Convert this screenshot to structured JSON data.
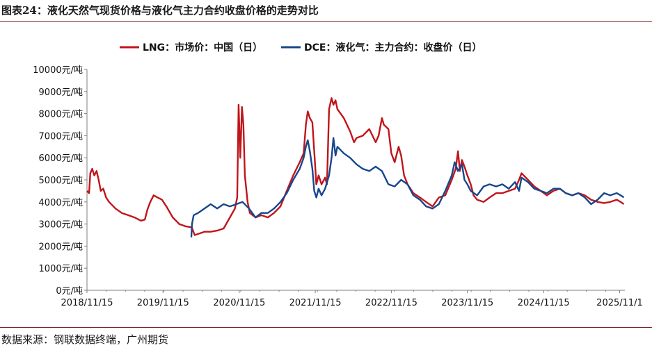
{
  "header": {
    "title": "图表24：液化天然气现货价格与液化气主力合约收盘价格的走势对比"
  },
  "footer": {
    "source": "数据来源：钢联数据终端，广州期货"
  },
  "chart_data": {
    "type": "line",
    "title": "",
    "xlabel": "",
    "ylabel": "",
    "ylim": [
      0,
      10000
    ],
    "y_ticks": [
      {
        "value": 0,
        "label": "0元/吨"
      },
      {
        "value": 1000,
        "label": "1000元/吨"
      },
      {
        "value": 2000,
        "label": "2000元/吨"
      },
      {
        "value": 3000,
        "label": "3000元/吨"
      },
      {
        "value": 4000,
        "label": "4000元/吨"
      },
      {
        "value": 5000,
        "label": "5000元/吨"
      },
      {
        "value": 6000,
        "label": "6000元/吨"
      },
      {
        "value": 7000,
        "label": "7000元/吨"
      },
      {
        "value": 8000,
        "label": "8000元/吨"
      },
      {
        "value": 9000,
        "label": "9000元/吨"
      },
      {
        "value": 10000,
        "label": "10000元/吨"
      }
    ],
    "xlim": [
      "2018-11-15",
      "2025-12-10"
    ],
    "x_ticks": [
      {
        "date": "2018-11-15",
        "label": "2018/11/15"
      },
      {
        "date": "2019-11-15",
        "label": "2019/11/15"
      },
      {
        "date": "2020-11-15",
        "label": "2020/11/15"
      },
      {
        "date": "2021-11-15",
        "label": "2021/11/15"
      },
      {
        "date": "2022-11-15",
        "label": "2022/11/15"
      },
      {
        "date": "2023-11-15",
        "label": "2023/11/15"
      },
      {
        "date": "2024-11-15",
        "label": "2024/11/15"
      },
      {
        "date": "2025-11-15",
        "label": "2025/11/1"
      }
    ],
    "grid": false,
    "legend_position": "top",
    "series": [
      {
        "name": "LNG：市场价：中国（日）",
        "color": "#c0151b",
        "points": [
          [
            "2018-11-15",
            4500
          ],
          [
            "2018-11-25",
            4400
          ],
          [
            "2018-12-01",
            5300
          ],
          [
            "2018-12-10",
            5500
          ],
          [
            "2018-12-20",
            5200
          ],
          [
            "2018-12-31",
            5400
          ],
          [
            "2019-01-10",
            5000
          ],
          [
            "2019-01-20",
            4500
          ],
          [
            "2019-02-01",
            4600
          ],
          [
            "2019-02-15",
            4200
          ],
          [
            "2019-03-01",
            4000
          ],
          [
            "2019-04-01",
            3700
          ],
          [
            "2019-05-01",
            3500
          ],
          [
            "2019-06-01",
            3400
          ],
          [
            "2019-07-01",
            3300
          ],
          [
            "2019-08-01",
            3150
          ],
          [
            "2019-08-20",
            3200
          ],
          [
            "2019-09-01",
            3650
          ],
          [
            "2019-09-15",
            4000
          ],
          [
            "2019-10-01",
            4300
          ],
          [
            "2019-10-20",
            4200
          ],
          [
            "2019-11-10",
            4100
          ],
          [
            "2019-12-01",
            3800
          ],
          [
            "2020-01-01",
            3300
          ],
          [
            "2020-02-01",
            3000
          ],
          [
            "2020-03-01",
            2900
          ],
          [
            "2020-04-01",
            2850
          ],
          [
            "2020-04-15",
            2500
          ],
          [
            "2020-05-01",
            2550
          ],
          [
            "2020-06-01",
            2650
          ],
          [
            "2020-07-01",
            2650
          ],
          [
            "2020-08-01",
            2700
          ],
          [
            "2020-09-01",
            2800
          ],
          [
            "2020-10-01",
            3300
          ],
          [
            "2020-10-25",
            3700
          ],
          [
            "2020-11-05",
            4200
          ],
          [
            "2020-11-12",
            8400
          ],
          [
            "2020-11-20",
            6000
          ],
          [
            "2020-11-28",
            8300
          ],
          [
            "2020-12-05",
            7500
          ],
          [
            "2020-12-12",
            5200
          ],
          [
            "2020-12-25",
            4000
          ],
          [
            "2021-01-05",
            3500
          ],
          [
            "2021-02-01",
            3300
          ],
          [
            "2021-03-01",
            3400
          ],
          [
            "2021-04-01",
            3300
          ],
          [
            "2021-05-01",
            3500
          ],
          [
            "2021-06-01",
            3800
          ],
          [
            "2021-07-01",
            4500
          ],
          [
            "2021-08-01",
            5200
          ],
          [
            "2021-09-01",
            5800
          ],
          [
            "2021-09-20",
            6200
          ],
          [
            "2021-10-01",
            7500
          ],
          [
            "2021-10-10",
            8100
          ],
          [
            "2021-10-20",
            7800
          ],
          [
            "2021-11-01",
            7600
          ],
          [
            "2021-11-12",
            6000
          ],
          [
            "2021-11-20",
            4800
          ],
          [
            "2021-12-01",
            5200
          ],
          [
            "2021-12-15",
            4800
          ],
          [
            "2022-01-01",
            5100
          ],
          [
            "2022-01-10",
            4800
          ],
          [
            "2022-01-20",
            8200
          ],
          [
            "2022-02-01",
            8700
          ],
          [
            "2022-02-10",
            8400
          ],
          [
            "2022-02-20",
            8600
          ],
          [
            "2022-03-01",
            8200
          ],
          [
            "2022-04-01",
            7800
          ],
          [
            "2022-05-01",
            7200
          ],
          [
            "2022-05-20",
            6700
          ],
          [
            "2022-06-01",
            6900
          ],
          [
            "2022-07-01",
            7000
          ],
          [
            "2022-08-01",
            7300
          ],
          [
            "2022-09-01",
            6700
          ],
          [
            "2022-09-15",
            7000
          ],
          [
            "2022-10-01",
            7800
          ],
          [
            "2022-10-10",
            7500
          ],
          [
            "2022-11-01",
            7300
          ],
          [
            "2022-11-15",
            6200
          ],
          [
            "2022-12-01",
            5800
          ],
          [
            "2022-12-20",
            6500
          ],
          [
            "2023-01-01",
            6100
          ],
          [
            "2023-01-15",
            5200
          ],
          [
            "2023-02-01",
            4800
          ],
          [
            "2023-03-01",
            4400
          ],
          [
            "2023-04-01",
            4200
          ],
          [
            "2023-05-01",
            4000
          ],
          [
            "2023-06-01",
            3800
          ],
          [
            "2023-07-01",
            4200
          ],
          [
            "2023-08-01",
            4300
          ],
          [
            "2023-09-01",
            5000
          ],
          [
            "2023-09-20",
            5500
          ],
          [
            "2023-10-01",
            6300
          ],
          [
            "2023-10-10",
            5400
          ],
          [
            "2023-10-20",
            5900
          ],
          [
            "2023-11-01",
            5600
          ],
          [
            "2023-11-15",
            5200
          ],
          [
            "2023-12-01",
            4800
          ],
          [
            "2023-12-15",
            4300
          ],
          [
            "2024-01-01",
            4100
          ],
          [
            "2024-02-01",
            4000
          ],
          [
            "2024-03-01",
            4200
          ],
          [
            "2024-04-01",
            4400
          ],
          [
            "2024-05-01",
            4400
          ],
          [
            "2024-06-01",
            4500
          ],
          [
            "2024-07-01",
            4600
          ],
          [
            "2024-07-20",
            5000
          ],
          [
            "2024-08-01",
            5300
          ],
          [
            "2024-09-01",
            5000
          ],
          [
            "2024-10-01",
            4700
          ],
          [
            "2024-11-01",
            4500
          ],
          [
            "2024-12-01",
            4300
          ],
          [
            "2025-01-01",
            4500
          ],
          [
            "2025-02-01",
            4600
          ],
          [
            "2025-03-01",
            4400
          ],
          [
            "2025-04-01",
            4300
          ],
          [
            "2025-05-01",
            4400
          ],
          [
            "2025-06-01",
            4300
          ],
          [
            "2025-07-01",
            4100
          ],
          [
            "2025-08-01",
            4000
          ],
          [
            "2025-09-01",
            3950
          ],
          [
            "2025-10-01",
            4000
          ],
          [
            "2025-11-01",
            4100
          ],
          [
            "2025-11-20",
            4000
          ],
          [
            "2025-12-05",
            3900
          ]
        ]
      },
      {
        "name": "DCE：液化气：主力合约：收盘价（日）",
        "color": "#17478c",
        "points": [
          [
            "2020-03-30",
            2400
          ],
          [
            "2020-04-02",
            3000
          ],
          [
            "2020-04-10",
            3400
          ],
          [
            "2020-05-01",
            3500
          ],
          [
            "2020-06-01",
            3700
          ],
          [
            "2020-07-01",
            3900
          ],
          [
            "2020-08-01",
            3700
          ],
          [
            "2020-09-01",
            3900
          ],
          [
            "2020-10-01",
            3800
          ],
          [
            "2020-11-01",
            3900
          ],
          [
            "2020-12-01",
            4000
          ],
          [
            "2021-01-01",
            3700
          ],
          [
            "2021-02-01",
            3300
          ],
          [
            "2021-03-01",
            3500
          ],
          [
            "2021-04-01",
            3500
          ],
          [
            "2021-05-01",
            3700
          ],
          [
            "2021-06-01",
            4000
          ],
          [
            "2021-07-01",
            4400
          ],
          [
            "2021-08-01",
            5000
          ],
          [
            "2021-09-01",
            5500
          ],
          [
            "2021-09-20",
            6000
          ],
          [
            "2021-10-01",
            6500
          ],
          [
            "2021-10-10",
            6800
          ],
          [
            "2021-10-20",
            6300
          ],
          [
            "2021-11-01",
            5500
          ],
          [
            "2021-11-10",
            4500
          ],
          [
            "2021-11-20",
            4200
          ],
          [
            "2021-12-01",
            4600
          ],
          [
            "2021-12-15",
            4300
          ],
          [
            "2022-01-01",
            4600
          ],
          [
            "2022-01-20",
            5200
          ],
          [
            "2022-02-01",
            6000
          ],
          [
            "2022-02-10",
            6900
          ],
          [
            "2022-02-20",
            6100
          ],
          [
            "2022-03-01",
            6500
          ],
          [
            "2022-04-01",
            6200
          ],
          [
            "2022-05-01",
            6000
          ],
          [
            "2022-06-01",
            5700
          ],
          [
            "2022-07-01",
            5500
          ],
          [
            "2022-08-01",
            5400
          ],
          [
            "2022-09-01",
            5600
          ],
          [
            "2022-10-01",
            5400
          ],
          [
            "2022-11-01",
            4800
          ],
          [
            "2022-12-01",
            4700
          ],
          [
            "2023-01-01",
            5000
          ],
          [
            "2023-02-01",
            4800
          ],
          [
            "2023-03-01",
            4300
          ],
          [
            "2023-04-01",
            4100
          ],
          [
            "2023-05-01",
            3800
          ],
          [
            "2023-06-01",
            3700
          ],
          [
            "2023-07-01",
            3900
          ],
          [
            "2023-08-01",
            4500
          ],
          [
            "2023-09-01",
            5200
          ],
          [
            "2023-09-15",
            5800
          ],
          [
            "2023-10-01",
            5400
          ],
          [
            "2023-10-20",
            5700
          ],
          [
            "2023-11-01",
            5000
          ],
          [
            "2023-11-15",
            4800
          ],
          [
            "2023-12-01",
            4500
          ],
          [
            "2024-01-01",
            4300
          ],
          [
            "2024-02-01",
            4700
          ],
          [
            "2024-03-01",
            4800
          ],
          [
            "2024-04-01",
            4700
          ],
          [
            "2024-05-01",
            4800
          ],
          [
            "2024-06-01",
            4600
          ],
          [
            "2024-07-01",
            4900
          ],
          [
            "2024-07-20",
            4500
          ],
          [
            "2024-08-01",
            5100
          ],
          [
            "2024-09-01",
            4900
          ],
          [
            "2024-10-01",
            4600
          ],
          [
            "2024-11-01",
            4500
          ],
          [
            "2024-12-01",
            4400
          ],
          [
            "2025-01-01",
            4600
          ],
          [
            "2025-02-01",
            4600
          ],
          [
            "2025-03-01",
            4400
          ],
          [
            "2025-04-01",
            4300
          ],
          [
            "2025-05-01",
            4400
          ],
          [
            "2025-06-01",
            4200
          ],
          [
            "2025-07-01",
            3900
          ],
          [
            "2025-08-01",
            4100
          ],
          [
            "2025-09-01",
            4400
          ],
          [
            "2025-10-01",
            4300
          ],
          [
            "2025-11-01",
            4400
          ],
          [
            "2025-11-20",
            4300
          ],
          [
            "2025-12-05",
            4200
          ]
        ]
      }
    ]
  }
}
